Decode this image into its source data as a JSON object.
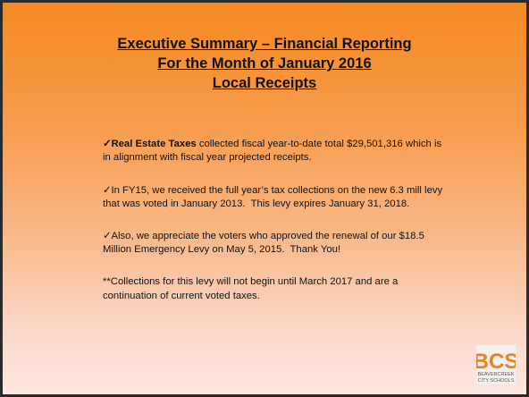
{
  "title": {
    "lines": [
      "Executive Summary – Financial Reporting",
      "For the Month of January 2016",
      "Local Receipts"
    ]
  },
  "paragraphs": [
    {
      "bold": "✓Real Estate Taxes",
      "lines": [
        " collected fiscal year-to-date total $29,501,316 which is",
        "in alignment with fiscal year projected receipts."
      ]
    },
    {
      "lines": [
        "✓In FY15, we received the full year’s tax collections on the new 6.3 mill levy",
        "that was voted in January 2013.  This levy expires January 31, 2018."
      ]
    },
    {
      "lines": [
        "✓Also, we appreciate the voters who approved the renewal of our $18.5",
        "Million Emergency Levy on May 5, 2015.  Thank You!"
      ]
    },
    {
      "lines": [
        "**Collections for this levy will not begin until March 2017 and are a",
        "continuation of current voted taxes."
      ]
    }
  ],
  "logo": {
    "mark": "BCS",
    "lines": [
      "BEAVERCREEK",
      "CITY SCHOOLS"
    ]
  }
}
